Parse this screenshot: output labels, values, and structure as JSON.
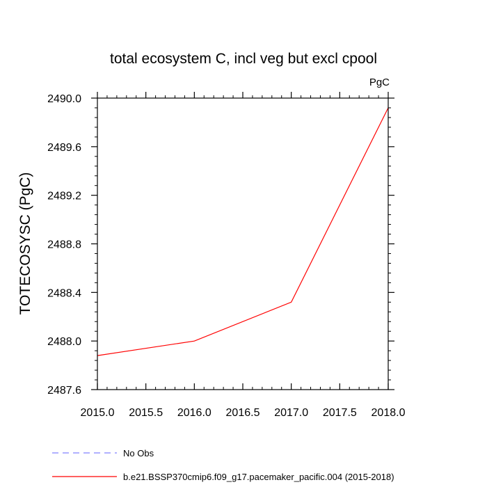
{
  "chart_data": {
    "type": "line",
    "title": "total ecosystem C, incl veg but excl cpool",
    "units_label": "PgC",
    "ylabel": "TOTECOSYSC  (PgC)",
    "xlabel": "",
    "xlim": [
      2015.0,
      2018.0
    ],
    "ylim": [
      2487.6,
      2490.0
    ],
    "x_ticks": [
      "2015.0",
      "2015.5",
      "2016.0",
      "2016.5",
      "2017.0",
      "2017.5",
      "2018.0"
    ],
    "y_ticks": [
      "2487.6",
      "2488.0",
      "2488.4",
      "2488.8",
      "2489.2",
      "2489.6",
      "2490.0"
    ],
    "grid": false,
    "series": [
      {
        "name": "b.e21.BSSP370cmip6.f09_g17.pacemaker_pacific.004 (2015-2018)",
        "color": "#ff0000",
        "style": "solid",
        "x": [
          2015.0,
          2016.0,
          2017.0,
          2018.0
        ],
        "values": [
          2487.88,
          2488.0,
          2488.32,
          2489.92
        ]
      }
    ],
    "legend": [
      {
        "label": "No Obs",
        "color": "#8080ff",
        "style": "dashed"
      },
      {
        "label": "b.e21.BSSP370cmip6.f09_g17.pacemaker_pacific.004 (2015-2018)",
        "color": "#ff0000",
        "style": "solid"
      }
    ]
  }
}
